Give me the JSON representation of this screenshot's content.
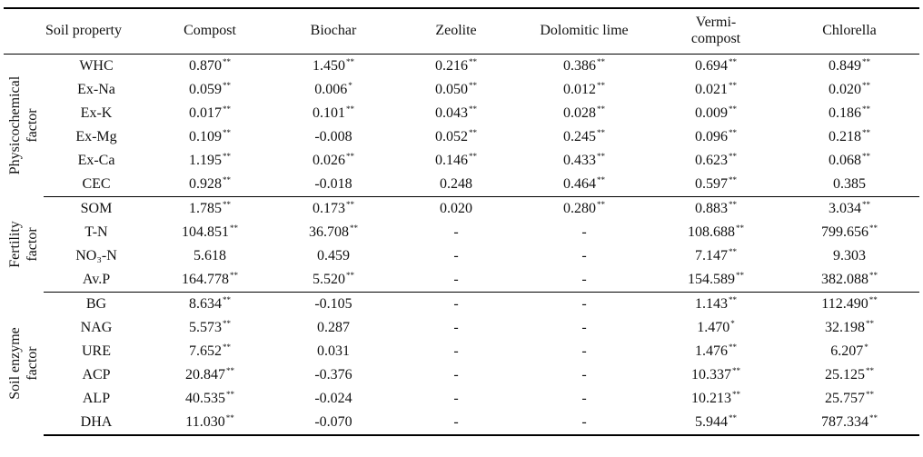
{
  "header": {
    "soil_property": "Soil  property",
    "columns": [
      "Compost",
      "Biochar",
      "Zeolite",
      "Dolomitic  lime",
      "Vermi-compost",
      "Chlorella"
    ],
    "vermi_line1": "Vermi-",
    "vermi_line2": "compost"
  },
  "groups": [
    {
      "label_lines": [
        "Physicochemical",
        "factor"
      ],
      "rows": [
        {
          "prop": "WHC",
          "cells": [
            [
              "0.870",
              "**"
            ],
            [
              "1.450",
              "**"
            ],
            [
              "0.216",
              "**"
            ],
            [
              "0.386",
              "**"
            ],
            [
              "0.694",
              "**"
            ],
            [
              "0.849",
              "**"
            ]
          ]
        },
        {
          "prop": "Ex-Na",
          "cells": [
            [
              "0.059",
              "**"
            ],
            [
              "0.006",
              "*"
            ],
            [
              "0.050",
              "**"
            ],
            [
              "0.012",
              "**"
            ],
            [
              "0.021",
              "**"
            ],
            [
              "0.020",
              "**"
            ]
          ]
        },
        {
          "prop": "Ex-K",
          "cells": [
            [
              "0.017",
              "**"
            ],
            [
              "0.101",
              "**"
            ],
            [
              "0.043",
              "**"
            ],
            [
              "0.028",
              "**"
            ],
            [
              "0.009",
              "**"
            ],
            [
              "0.186",
              "**"
            ]
          ]
        },
        {
          "prop": "Ex-Mg",
          "cells": [
            [
              "0.109",
              "**"
            ],
            [
              "-0.008",
              ""
            ],
            [
              "0.052",
              "**"
            ],
            [
              "0.245",
              "**"
            ],
            [
              "0.096",
              "**"
            ],
            [
              "0.218",
              "**"
            ]
          ]
        },
        {
          "prop": "Ex-Ca",
          "cells": [
            [
              "1.195",
              "**"
            ],
            [
              "0.026",
              "**"
            ],
            [
              "0.146",
              "**"
            ],
            [
              "0.433",
              "**"
            ],
            [
              "0.623",
              "**"
            ],
            [
              "0.068",
              "**"
            ]
          ]
        },
        {
          "prop": "CEC",
          "cells": [
            [
              "0.928",
              "**"
            ],
            [
              "-0.018",
              ""
            ],
            [
              "0.248",
              ""
            ],
            [
              "0.464",
              "**"
            ],
            [
              "0.597",
              "**"
            ],
            [
              "0.385",
              ""
            ]
          ]
        }
      ]
    },
    {
      "label_lines": [
        "Fertility",
        "factor"
      ],
      "rows": [
        {
          "prop": "SOM",
          "cells": [
            [
              "1.785",
              "**"
            ],
            [
              "0.173",
              "**"
            ],
            [
              "0.020",
              ""
            ],
            [
              "0.280",
              "**"
            ],
            [
              "0.883",
              "**"
            ],
            [
              "3.034",
              "**"
            ]
          ]
        },
        {
          "prop": "T-N",
          "cells": [
            [
              "104.851",
              "**"
            ],
            [
              "36.708",
              "**"
            ],
            [
              "-",
              ""
            ],
            [
              "-",
              ""
            ],
            [
              "108.688",
              "**"
            ],
            [
              "799.656",
              "**"
            ]
          ]
        },
        {
          "prop": "NO₃-N",
          "cells": [
            [
              "5.618",
              ""
            ],
            [
              "0.459",
              ""
            ],
            [
              "-",
              ""
            ],
            [
              "-",
              ""
            ],
            [
              "7.147",
              "**"
            ],
            [
              "9.303",
              ""
            ]
          ]
        },
        {
          "prop": "Av.P",
          "cells": [
            [
              "164.778",
              "**"
            ],
            [
              "5.520",
              "**"
            ],
            [
              "-",
              ""
            ],
            [
              "-",
              ""
            ],
            [
              "154.589",
              "**"
            ],
            [
              "382.088",
              "**"
            ]
          ]
        }
      ]
    },
    {
      "label_lines": [
        "Soil  enzyme",
        "factor"
      ],
      "rows": [
        {
          "prop": "BG",
          "cells": [
            [
              "8.634",
              "**"
            ],
            [
              "-0.105",
              ""
            ],
            [
              "-",
              ""
            ],
            [
              "-",
              ""
            ],
            [
              "1.143",
              "**"
            ],
            [
              "112.490",
              "**"
            ]
          ]
        },
        {
          "prop": "NAG",
          "cells": [
            [
              "5.573",
              "**"
            ],
            [
              "0.287",
              ""
            ],
            [
              "-",
              ""
            ],
            [
              "-",
              ""
            ],
            [
              "1.470",
              "*"
            ],
            [
              "32.198",
              "**"
            ]
          ]
        },
        {
          "prop": "URE",
          "cells": [
            [
              "7.652",
              "**"
            ],
            [
              "0.031",
              ""
            ],
            [
              "-",
              ""
            ],
            [
              "-",
              ""
            ],
            [
              "1.476",
              "**"
            ],
            [
              "6.207",
              "*"
            ]
          ]
        },
        {
          "prop": "ACP",
          "cells": [
            [
              "20.847",
              "**"
            ],
            [
              "-0.376",
              ""
            ],
            [
              "-",
              ""
            ],
            [
              "-",
              ""
            ],
            [
              "10.337",
              "**"
            ],
            [
              "25.125",
              "**"
            ]
          ]
        },
        {
          "prop": "ALP",
          "cells": [
            [
              "40.535",
              "**"
            ],
            [
              "-0.024",
              ""
            ],
            [
              "-",
              ""
            ],
            [
              "-",
              ""
            ],
            [
              "10.213",
              "**"
            ],
            [
              "25.757",
              "**"
            ]
          ]
        },
        {
          "prop": "DHA",
          "cells": [
            [
              "11.030",
              "**"
            ],
            [
              "-0.070",
              ""
            ],
            [
              "-",
              ""
            ],
            [
              "-",
              ""
            ],
            [
              "5.944",
              "**"
            ],
            [
              "787.334",
              "**"
            ]
          ]
        }
      ]
    }
  ]
}
